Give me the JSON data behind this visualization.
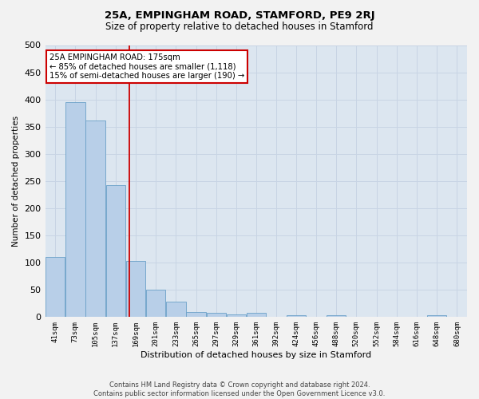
{
  "title": "25A, EMPINGHAM ROAD, STAMFORD, PE9 2RJ",
  "subtitle": "Size of property relative to detached houses in Stamford",
  "xlabel": "Distribution of detached houses by size in Stamford",
  "ylabel": "Number of detached properties",
  "footer_line1": "Contains HM Land Registry data © Crown copyright and database right 2024.",
  "footer_line2": "Contains public sector information licensed under the Open Government Licence v3.0.",
  "bin_labels": [
    "41sqm",
    "73sqm",
    "105sqm",
    "137sqm",
    "169sqm",
    "201sqm",
    "233sqm",
    "265sqm",
    "297sqm",
    "329sqm",
    "361sqm",
    "392sqm",
    "424sqm",
    "456sqm",
    "488sqm",
    "520sqm",
    "552sqm",
    "584sqm",
    "616sqm",
    "648sqm",
    "680sqm"
  ],
  "bar_values": [
    110,
    395,
    362,
    242,
    103,
    50,
    29,
    10,
    8,
    5,
    8,
    0,
    4,
    0,
    3,
    0,
    0,
    0,
    0,
    3,
    0
  ],
  "bin_starts": [
    41,
    73,
    105,
    137,
    169,
    201,
    233,
    265,
    297,
    329,
    361,
    392,
    424,
    456,
    488,
    520,
    552,
    584,
    616,
    648,
    680
  ],
  "bin_width": 32,
  "property_size": 175,
  "annotation_line1": "25A EMPINGHAM ROAD: 175sqm",
  "annotation_line2": "← 85% of detached houses are smaller (1,118)",
  "annotation_line3": "15% of semi-detached houses are larger (190) →",
  "bar_color": "#b8cfe8",
  "bar_edge_color": "#6aa0c8",
  "vline_color": "#cc0000",
  "annotation_box_color": "#ffffff",
  "annotation_box_edge": "#cc0000",
  "grid_color": "#c8d4e4",
  "background_color": "#dce6f0",
  "fig_background": "#f2f2f2",
  "ylim": [
    0,
    500
  ],
  "yticks": [
    0,
    50,
    100,
    150,
    200,
    250,
    300,
    350,
    400,
    450,
    500
  ]
}
